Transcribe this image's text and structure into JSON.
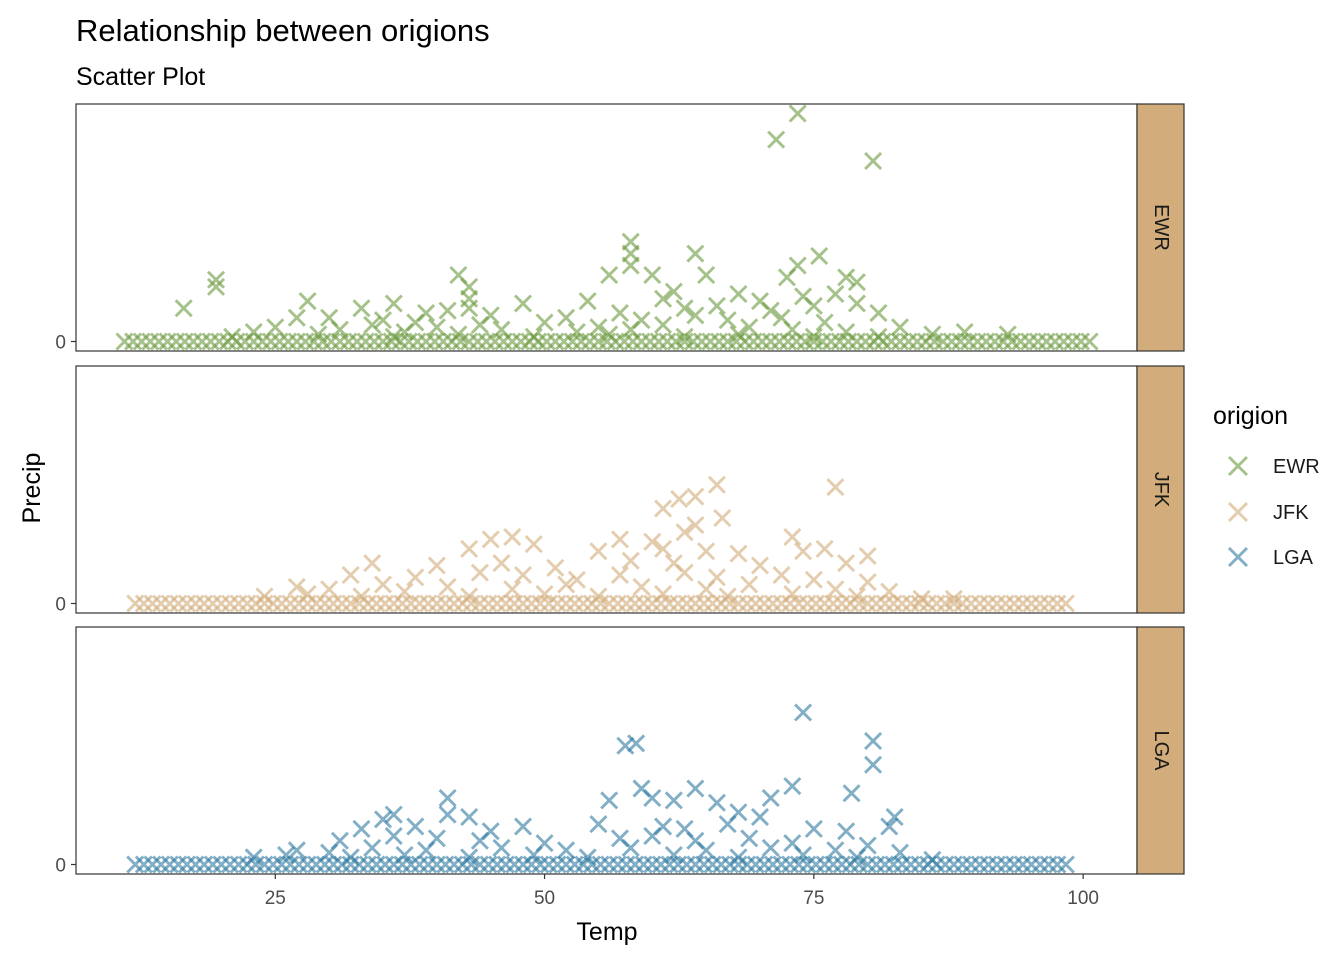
{
  "chart_data": {
    "type": "scatter",
    "title": "Relationship between origions",
    "subtitle": "Scatter Plot",
    "xlabel": "Temp",
    "ylabel": "Precip",
    "x_ticks": [
      25,
      50,
      75,
      100
    ],
    "xlim": [
      6.5,
      105
    ],
    "y_ticks": [
      0
    ],
    "ylim": [
      -0.04,
      1.0
    ],
    "marker": "x",
    "point_alpha": 0.6,
    "legend_title": "origion",
    "legend_position": "right",
    "strip_fill": "#d2ac7a",
    "facets": [
      {
        "label": "EWR",
        "color": "#6a9a3d",
        "zero_x_range": [
          11,
          101
        ],
        "points": [
          [
            73.5,
            0.96
          ],
          [
            71.5,
            0.85
          ],
          [
            80.5,
            0.76
          ],
          [
            58,
            0.42
          ],
          [
            58,
            0.37
          ],
          [
            64,
            0.37
          ],
          [
            58,
            0.32
          ],
          [
            73.5,
            0.32
          ],
          [
            75.5,
            0.36
          ],
          [
            72.5,
            0.27
          ],
          [
            56,
            0.28
          ],
          [
            60,
            0.28
          ],
          [
            65,
            0.28
          ],
          [
            78,
            0.27
          ],
          [
            79,
            0.25
          ],
          [
            19.5,
            0.26
          ],
          [
            19.5,
            0.23
          ],
          [
            42,
            0.28
          ],
          [
            43,
            0.23
          ],
          [
            43,
            0.18
          ],
          [
            43,
            0.14
          ],
          [
            16.5,
            0.14
          ],
          [
            28,
            0.17
          ],
          [
            36,
            0.16
          ],
          [
            48,
            0.16
          ],
          [
            54,
            0.17
          ],
          [
            62,
            0.21
          ],
          [
            61,
            0.18
          ],
          [
            68,
            0.2
          ],
          [
            70,
            0.17
          ],
          [
            74,
            0.19
          ],
          [
            77,
            0.2
          ],
          [
            79,
            0.16
          ],
          [
            33,
            0.14
          ],
          [
            39,
            0.12
          ],
          [
            41,
            0.13
          ],
          [
            45,
            0.11
          ],
          [
            52,
            0.1
          ],
          [
            57,
            0.12
          ],
          [
            63,
            0.14
          ],
          [
            66,
            0.15
          ],
          [
            71,
            0.13
          ],
          [
            75,
            0.15
          ],
          [
            81,
            0.12
          ],
          [
            27,
            0.1
          ],
          [
            30,
            0.1
          ],
          [
            35,
            0.09
          ],
          [
            38,
            0.08
          ],
          [
            44,
            0.07
          ],
          [
            50,
            0.08
          ],
          [
            55,
            0.06
          ],
          [
            59,
            0.09
          ],
          [
            64,
            0.11
          ],
          [
            67,
            0.09
          ],
          [
            72,
            0.1
          ],
          [
            76,
            0.08
          ],
          [
            83,
            0.06
          ],
          [
            23,
            0.04
          ],
          [
            25,
            0.06
          ],
          [
            31,
            0.05
          ],
          [
            34,
            0.07
          ],
          [
            37,
            0.04
          ],
          [
            40,
            0.06
          ],
          [
            46,
            0.05
          ],
          [
            53,
            0.04
          ],
          [
            58,
            0.05
          ],
          [
            61,
            0.07
          ],
          [
            69,
            0.06
          ],
          [
            73,
            0.05
          ],
          [
            78,
            0.04
          ],
          [
            86,
            0.03
          ],
          [
            89,
            0.04
          ],
          [
            93,
            0.03
          ],
          [
            21,
            0.02
          ],
          [
            29,
            0.03
          ],
          [
            36,
            0.02
          ],
          [
            42,
            0.03
          ],
          [
            49,
            0.02
          ],
          [
            56,
            0.03
          ],
          [
            63,
            0.02
          ],
          [
            68,
            0.03
          ],
          [
            75,
            0.02
          ],
          [
            81,
            0.02
          ]
        ]
      },
      {
        "label": "JFK",
        "color": "#d2ac7a",
        "zero_x_range": [
          12,
          99
        ],
        "points": [
          [
            66,
            0.5
          ],
          [
            77,
            0.49
          ],
          [
            62.5,
            0.44
          ],
          [
            64,
            0.45
          ],
          [
            61,
            0.4
          ],
          [
            64,
            0.33
          ],
          [
            66.5,
            0.36
          ],
          [
            63,
            0.3
          ],
          [
            45,
            0.27
          ],
          [
            47,
            0.28
          ],
          [
            57,
            0.27
          ],
          [
            73,
            0.28
          ],
          [
            60,
            0.26
          ],
          [
            49,
            0.25
          ],
          [
            43,
            0.23
          ],
          [
            55,
            0.22
          ],
          [
            61,
            0.23
          ],
          [
            65,
            0.22
          ],
          [
            74,
            0.22
          ],
          [
            76,
            0.23
          ],
          [
            68,
            0.21
          ],
          [
            80,
            0.2
          ],
          [
            34,
            0.17
          ],
          [
            40,
            0.16
          ],
          [
            46,
            0.17
          ],
          [
            51,
            0.15
          ],
          [
            58,
            0.18
          ],
          [
            62,
            0.17
          ],
          [
            70,
            0.16
          ],
          [
            78,
            0.17
          ],
          [
            32,
            0.12
          ],
          [
            38,
            0.11
          ],
          [
            44,
            0.13
          ],
          [
            48,
            0.12
          ],
          [
            53,
            0.1
          ],
          [
            57,
            0.12
          ],
          [
            63,
            0.13
          ],
          [
            66,
            0.11
          ],
          [
            72,
            0.12
          ],
          [
            75,
            0.1
          ],
          [
            80,
            0.09
          ],
          [
            27,
            0.07
          ],
          [
            30,
            0.06
          ],
          [
            35,
            0.08
          ],
          [
            41,
            0.07
          ],
          [
            47,
            0.06
          ],
          [
            52,
            0.08
          ],
          [
            59,
            0.07
          ],
          [
            65,
            0.06
          ],
          [
            69,
            0.08
          ],
          [
            77,
            0.06
          ],
          [
            82,
            0.05
          ],
          [
            24,
            0.03
          ],
          [
            28,
            0.04
          ],
          [
            33,
            0.03
          ],
          [
            37,
            0.05
          ],
          [
            43,
            0.03
          ],
          [
            50,
            0.04
          ],
          [
            55,
            0.03
          ],
          [
            61,
            0.04
          ],
          [
            67,
            0.03
          ],
          [
            73,
            0.04
          ],
          [
            79,
            0.03
          ],
          [
            85,
            0.02
          ],
          [
            88,
            0.02
          ]
        ]
      },
      {
        "label": "LGA",
        "color": "#2e7aa0",
        "zero_x_range": [
          12,
          99
        ],
        "points": [
          [
            74,
            0.64
          ],
          [
            80.5,
            0.52
          ],
          [
            57.5,
            0.5
          ],
          [
            58.5,
            0.51
          ],
          [
            80.5,
            0.42
          ],
          [
            73,
            0.33
          ],
          [
            59,
            0.32
          ],
          [
            64,
            0.32
          ],
          [
            60,
            0.28
          ],
          [
            78.5,
            0.3
          ],
          [
            41,
            0.28
          ],
          [
            56,
            0.27
          ],
          [
            62,
            0.27
          ],
          [
            66,
            0.26
          ],
          [
            71,
            0.28
          ],
          [
            36,
            0.21
          ],
          [
            35,
            0.19
          ],
          [
            41,
            0.21
          ],
          [
            43,
            0.2
          ],
          [
            68,
            0.22
          ],
          [
            70,
            0.2
          ],
          [
            82.5,
            0.2
          ],
          [
            82,
            0.16
          ],
          [
            33,
            0.15
          ],
          [
            38,
            0.16
          ],
          [
            45,
            0.14
          ],
          [
            48,
            0.16
          ],
          [
            55,
            0.17
          ],
          [
            61,
            0.16
          ],
          [
            63,
            0.15
          ],
          [
            67,
            0.17
          ],
          [
            75,
            0.15
          ],
          [
            78,
            0.14
          ],
          [
            31,
            0.1
          ],
          [
            36,
            0.12
          ],
          [
            40,
            0.11
          ],
          [
            44,
            0.1
          ],
          [
            50,
            0.09
          ],
          [
            57,
            0.11
          ],
          [
            60,
            0.12
          ],
          [
            64,
            0.1
          ],
          [
            69,
            0.11
          ],
          [
            73,
            0.09
          ],
          [
            80,
            0.08
          ],
          [
            27,
            0.06
          ],
          [
            30,
            0.05
          ],
          [
            34,
            0.07
          ],
          [
            39,
            0.06
          ],
          [
            46,
            0.07
          ],
          [
            52,
            0.06
          ],
          [
            58,
            0.07
          ],
          [
            65,
            0.06
          ],
          [
            71,
            0.07
          ],
          [
            77,
            0.06
          ],
          [
            83,
            0.05
          ],
          [
            23,
            0.03
          ],
          [
            26,
            0.04
          ],
          [
            32,
            0.03
          ],
          [
            37,
            0.04
          ],
          [
            43,
            0.03
          ],
          [
            49,
            0.04
          ],
          [
            54,
            0.03
          ],
          [
            62,
            0.04
          ],
          [
            68,
            0.03
          ],
          [
            74,
            0.04
          ],
          [
            79,
            0.03
          ],
          [
            86,
            0.02
          ]
        ]
      }
    ]
  }
}
